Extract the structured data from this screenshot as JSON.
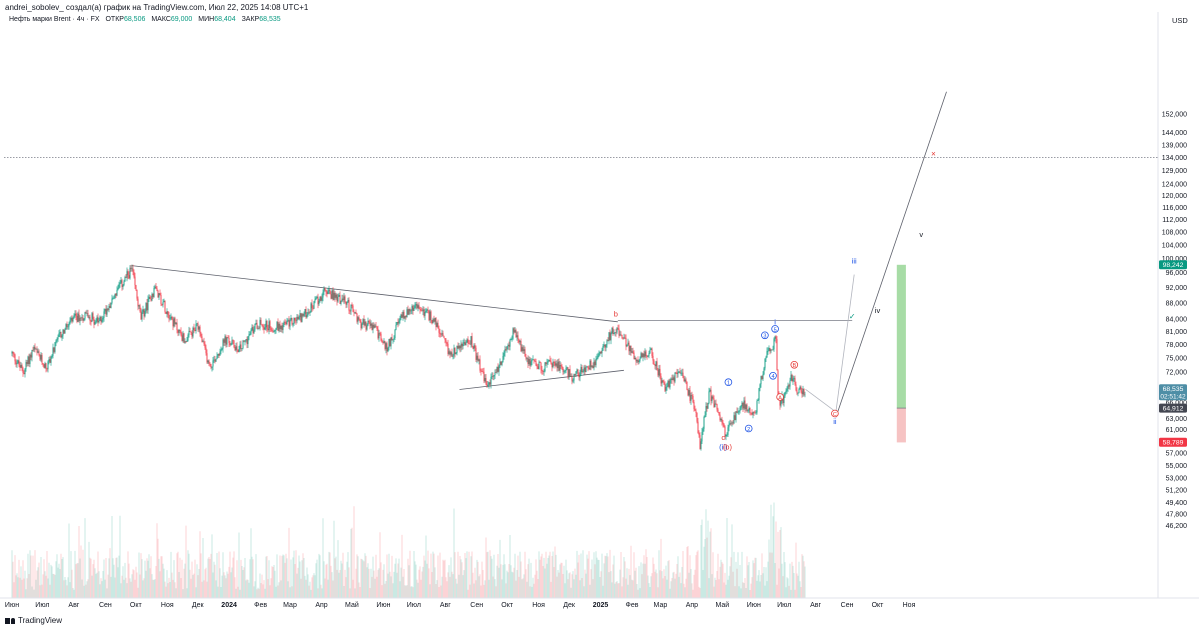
{
  "header": {
    "attribution": "andrei_sobolev_ создал(а) график на TradingView.com, Июл 22, 2025 14:08 UTC+1",
    "symbol": "Нефть марки Brent · 4ч · FX",
    "open_label": "ОТКР",
    "open": "68,506",
    "high_label": "МАКС",
    "high": "69,000",
    "low_label": "МИН",
    "low": "68,404",
    "close_label": "ЗАКР",
    "close": "68,535"
  },
  "footer": {
    "brand": "TradingView"
  },
  "chart_data": {
    "type": "candlestick",
    "currency": "USD",
    "y_scale": "log",
    "y_ticks": [
      "152,000",
      "144,000",
      "139,000",
      "134,000",
      "129,000",
      "124,000",
      "120,000",
      "116,000",
      "112,000",
      "108,000",
      "104,000",
      "100,000",
      "96,000",
      "92,000",
      "88,000",
      "84,000",
      "81,000",
      "78,000",
      "75,000",
      "72,000",
      "69,000",
      "66,000",
      "63,000",
      "61,000",
      "57,000",
      "55,000",
      "53,000",
      "51,200",
      "49,400",
      "47,800",
      "46,200"
    ],
    "x_ticks": [
      {
        "label": "Июн",
        "date": "2023-06-01",
        "bold": false
      },
      {
        "label": "Июл",
        "date": "2023-07-01",
        "bold": false
      },
      {
        "label": "Авг",
        "date": "2023-08-01",
        "bold": false
      },
      {
        "label": "Сен",
        "date": "2023-09-01",
        "bold": false
      },
      {
        "label": "Окт",
        "date": "2023-10-01",
        "bold": false
      },
      {
        "label": "Ноя",
        "date": "2023-11-01",
        "bold": false
      },
      {
        "label": "Дек",
        "date": "2023-12-01",
        "bold": false
      },
      {
        "label": "2024",
        "date": "2024-01-01",
        "bold": true
      },
      {
        "label": "Фев",
        "date": "2024-02-01",
        "bold": false
      },
      {
        "label": "Мар",
        "date": "2024-03-01",
        "bold": false
      },
      {
        "label": "Апр",
        "date": "2024-04-01",
        "bold": false
      },
      {
        "label": "Май",
        "date": "2024-05-01",
        "bold": false
      },
      {
        "label": "Июн",
        "date": "2024-06-01",
        "bold": false
      },
      {
        "label": "Июл",
        "date": "2024-07-01",
        "bold": false
      },
      {
        "label": "Авг",
        "date": "2024-08-01",
        "bold": false
      },
      {
        "label": "Сен",
        "date": "2024-09-01",
        "bold": false
      },
      {
        "label": "Окт",
        "date": "2024-10-01",
        "bold": false
      },
      {
        "label": "Ноя",
        "date": "2024-11-01",
        "bold": false
      },
      {
        "label": "Дек",
        "date": "2024-12-01",
        "bold": false
      },
      {
        "label": "2025",
        "date": "2025-01-01",
        "bold": true
      },
      {
        "label": "Фев",
        "date": "2025-02-01",
        "bold": false
      },
      {
        "label": "Мар",
        "date": "2025-03-01",
        "bold": false
      },
      {
        "label": "Апр",
        "date": "2025-04-01",
        "bold": false
      },
      {
        "label": "Май",
        "date": "2025-05-01",
        "bold": false
      },
      {
        "label": "Июн",
        "date": "2025-06-01",
        "bold": false
      },
      {
        "label": "Июл",
        "date": "2025-07-01",
        "bold": false
      },
      {
        "label": "Авг",
        "date": "2025-08-01",
        "bold": false
      },
      {
        "label": "Сен",
        "date": "2025-09-01",
        "bold": false
      },
      {
        "label": "Окт",
        "date": "2025-10-01",
        "bold": false
      },
      {
        "label": "Ноя",
        "date": "2025-11-01",
        "bold": false
      }
    ],
    "price_path": [
      [
        "2023-06-01",
        76
      ],
      [
        "2023-06-12",
        72
      ],
      [
        "2023-06-22",
        77
      ],
      [
        "2023-07-05",
        73
      ],
      [
        "2023-07-18",
        80
      ],
      [
        "2023-08-01",
        84
      ],
      [
        "2023-08-15",
        85
      ],
      [
        "2023-08-25",
        83
      ],
      [
        "2023-09-10",
        90
      ],
      [
        "2023-09-27",
        97
      ],
      [
        "2023-10-06",
        84
      ],
      [
        "2023-10-20",
        92
      ],
      [
        "2023-11-05",
        84
      ],
      [
        "2023-11-18",
        79
      ],
      [
        "2023-12-01",
        82
      ],
      [
        "2023-12-13",
        73
      ],
      [
        "2023-12-28",
        79
      ],
      [
        "2024-01-12",
        77
      ],
      [
        "2024-01-29",
        83
      ],
      [
        "2024-02-14",
        82
      ],
      [
        "2024-03-01",
        83
      ],
      [
        "2024-03-15",
        85
      ],
      [
        "2024-04-05",
        91
      ],
      [
        "2024-04-12",
        90
      ],
      [
        "2024-04-26",
        88
      ],
      [
        "2024-05-10",
        83
      ],
      [
        "2024-05-23",
        82
      ],
      [
        "2024-06-04",
        77
      ],
      [
        "2024-06-20",
        85
      ],
      [
        "2024-07-05",
        87
      ],
      [
        "2024-07-20",
        84
      ],
      [
        "2024-08-05",
        76
      ],
      [
        "2024-08-26",
        79
      ],
      [
        "2024-09-11",
        69
      ],
      [
        "2024-09-25",
        74
      ],
      [
        "2024-10-07",
        81
      ],
      [
        "2024-10-20",
        75
      ],
      [
        "2024-11-03",
        73
      ],
      [
        "2024-11-17",
        74
      ],
      [
        "2024-12-05",
        71
      ],
      [
        "2024-12-25",
        74
      ],
      [
        "2025-01-15",
        82
      ],
      [
        "2025-02-05",
        75
      ],
      [
        "2025-02-20",
        76
      ],
      [
        "2025-03-05",
        69
      ],
      [
        "2025-03-20",
        72
      ],
      [
        "2025-04-04",
        65
      ],
      [
        "2025-04-09",
        58.4
      ],
      [
        "2025-04-18",
        68
      ],
      [
        "2025-04-25",
        65
      ],
      [
        "2025-05-05",
        60
      ],
      [
        "2025-05-20",
        66
      ],
      [
        "2025-06-02",
        63.6
      ],
      [
        "2025-06-13",
        76
      ],
      [
        "2025-06-23",
        79
      ],
      [
        "2025-06-25",
        66
      ],
      [
        "2025-07-01",
        67
      ],
      [
        "2025-07-08",
        71
      ],
      [
        "2025-07-15",
        68
      ],
      [
        "2025-07-22",
        68.535
      ]
    ],
    "horizontal_lines": [
      {
        "price": 134,
        "style": "dashed"
      },
      {
        "price": 83.6,
        "from": "2025-01-18",
        "to": "2025-09-06",
        "style": "solid"
      }
    ],
    "trendlines": [
      {
        "from": [
          "2023-09-27",
          98
        ],
        "to": [
          "2025-01-18",
          83.3
        ]
      },
      {
        "from": [
          "2024-08-15",
          68.5
        ],
        "to": [
          "2025-01-24",
          72.4
        ]
      },
      {
        "from": [
          "2025-08-21",
          63.2
        ],
        "to": [
          "2025-12-08",
          162
        ]
      }
    ],
    "projection_path": [
      [
        "2025-07-22",
        68.535
      ],
      [
        "2025-08-21",
        64.2
      ],
      [
        "2025-09-08",
        95.5
      ]
    ],
    "position_tool": {
      "from": "2025-10-20",
      "to": "2025-10-29",
      "entry": 64.912,
      "target": 98.242,
      "stop": 58.789
    },
    "wave_labels": [
      {
        "text": "b",
        "date": "2025-01-16",
        "price": 84.6,
        "color": "#e53935",
        "circle": false
      },
      {
        "text": "c",
        "date": "2025-05-02",
        "price": 59.2,
        "color": "#e53935",
        "circle": false
      },
      {
        "text": "(ii)",
        "date": "2025-05-02",
        "price": 57.6,
        "color": "#1e53e5",
        "circle": false
      },
      {
        "text": "(b)",
        "date": "2025-05-06",
        "price": 57.6,
        "color": "#e53935",
        "circle": false
      },
      {
        "text": "1",
        "date": "2025-05-07",
        "price": 69.5,
        "color": "#1e53e5",
        "circle": true
      },
      {
        "text": "2",
        "date": "2025-05-27",
        "price": 60.8,
        "color": "#1e53e5",
        "circle": true
      },
      {
        "text": "3",
        "date": "2025-06-12",
        "price": 79.6,
        "color": "#1e53e5",
        "circle": true
      },
      {
        "text": "5",
        "date": "2025-06-22",
        "price": 81.1,
        "color": "#1e53e5",
        "circle": true
      },
      {
        "text": "i",
        "date": "2025-06-22",
        "price": 82.6,
        "color": "#1e53e5",
        "circle": false
      },
      {
        "text": "4",
        "date": "2025-06-20",
        "price": 70.8,
        "color": "#1e53e5",
        "circle": true
      },
      {
        "text": "A",
        "date": "2025-06-27",
        "price": 66.6,
        "color": "#e53935",
        "circle": true
      },
      {
        "text": "B",
        "date": "2025-07-11",
        "price": 73.1,
        "color": "#e53935",
        "circle": true
      },
      {
        "text": "C",
        "date": "2025-08-20",
        "price": 63.5,
        "color": "#e53935",
        "circle": true
      },
      {
        "text": "ii",
        "date": "2025-08-20",
        "price": 62.0,
        "color": "#1e53e5",
        "circle": false
      },
      {
        "text": "iii",
        "date": "2025-09-08",
        "price": 98.6,
        "color": "#1e53e5",
        "circle": false
      },
      {
        "text": "iv",
        "date": "2025-10-01",
        "price": 85.4,
        "color": "#131722",
        "circle": false
      },
      {
        "text": "v",
        "date": "2025-11-13",
        "price": 106.5,
        "color": "#131722",
        "circle": false
      }
    ],
    "markers": [
      {
        "text": "×",
        "date": "2025-11-25",
        "price": 134.3,
        "color": "#e53935"
      },
      {
        "text": "✓",
        "date": "2025-09-06",
        "price": 84.0,
        "color": "#089981"
      }
    ],
    "price_badges": [
      {
        "value": "98,242",
        "bg": "#089981"
      },
      {
        "value": "68,535",
        "sub": "02:51:42",
        "bg": "#4e8ea6"
      },
      {
        "value": "64,912",
        "bg": "#434651"
      },
      {
        "value": "58,789",
        "bg": "#f23645"
      }
    ],
    "colors": {
      "up": "#089981",
      "down": "#f23645",
      "line": "#787b86",
      "target_zone": "#a7dca6",
      "stop_zone": "#f6c3c3"
    }
  }
}
